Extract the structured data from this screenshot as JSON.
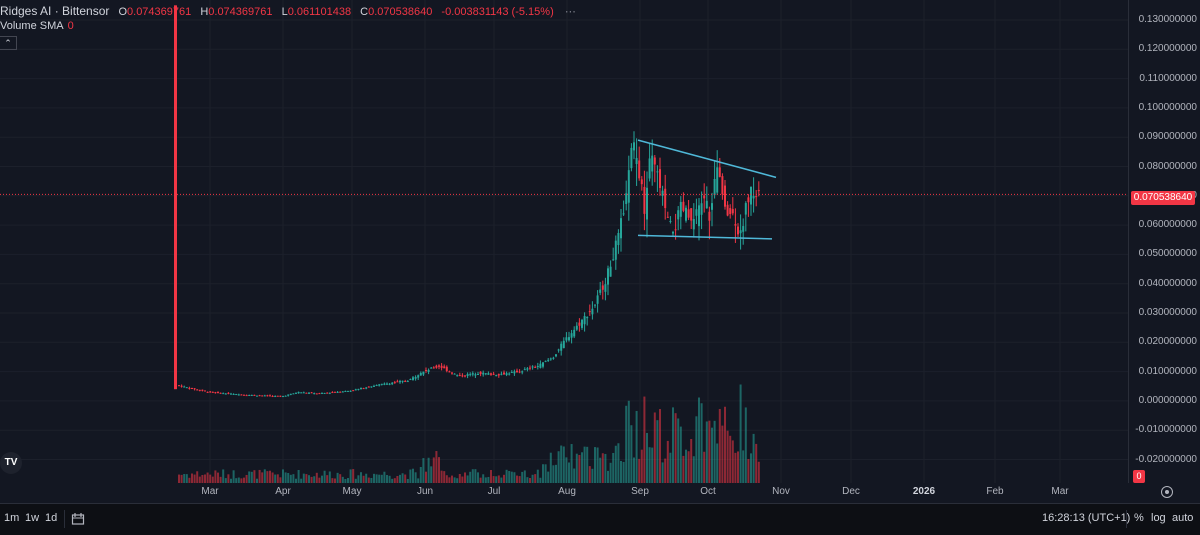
{
  "legend": {
    "symbol": "Ridges AI · Bittensor",
    "o_label": "O",
    "o": "0.074369761",
    "h_label": "H",
    "h": "0.074369761",
    "l_label": "L",
    "l": "0.061101438",
    "c_label": "C",
    "c": "0.070538640",
    "change": "-0.003831143 (-5.15%)",
    "volume_label": "Volume SMA",
    "volume_value": "0"
  },
  "price_axis": {
    "labels": [
      "0.130000000",
      "0.120000000",
      "0.110000000",
      "0.100000000",
      "0.090000000",
      "0.080000000",
      "0.070000000",
      "0.060000000",
      "0.050000000",
      "0.040000000",
      "0.030000000",
      "0.020000000",
      "0.010000000",
      "0.000000000",
      "-0.010000000",
      "-0.020000000"
    ],
    "current_price": "0.070538640",
    "volume_badge": "0"
  },
  "time_axis": {
    "labels": [
      "Mar",
      "Apr",
      "May",
      "Jun",
      "Jul",
      "Aug",
      "Sep",
      "Oct",
      "Nov",
      "Dec",
      "2026",
      "Feb",
      "Mar"
    ]
  },
  "bottom_bar": {
    "timeframes": [
      "1m",
      "1w",
      "1d"
    ],
    "clock": "16:28:13 (UTC+1)",
    "percent": "%",
    "log": "log",
    "auto": "auto"
  },
  "colors": {
    "background": "#131722",
    "up": "#26a69a",
    "down": "#f23645",
    "trendline": "#4fb8d8",
    "price_line": "#f23645"
  },
  "chart_data": {
    "type": "candlestick",
    "series": [
      {
        "name": "Price",
        "x": [
          "Feb",
          "Mar",
          "Apr",
          "May",
          "Jun",
          "Jul",
          "Aug",
          "Late Aug",
          "Sep",
          "Mid Sep",
          "Oct",
          "Mid Oct"
        ],
        "values": [
          0.005,
          0.003,
          0.0015,
          0.003,
          0.008,
          0.008,
          0.013,
          0.04,
          0.085,
          0.062,
          0.078,
          0.0705
        ]
      }
    ],
    "ylim": [
      -0.025,
      0.133
    ],
    "annotations": [
      "descending triangle trendlines"
    ]
  }
}
